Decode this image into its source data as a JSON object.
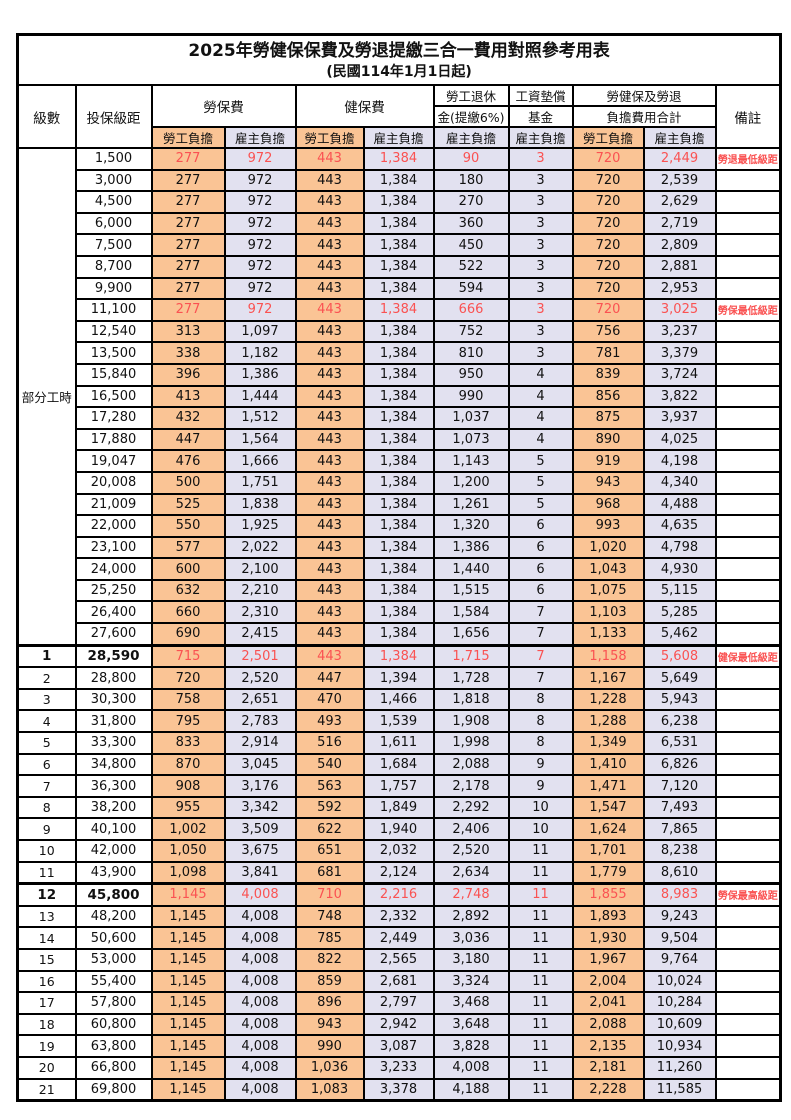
{
  "title": {
    "line1": "2025年勞健保保費及勞退提繳三合一費用對照參考用表",
    "line2": "(民國114年1月1日起)"
  },
  "header": {
    "level": "級數",
    "bracket": "投保級距",
    "labor_fee": "勞保費",
    "health_fee": "健保費",
    "pension_line1": "勞工退休",
    "pension_line2": "金(提繳6%)",
    "wage_fund_line1": "工資墊償",
    "wage_fund_line2": "基金",
    "total_line1": "勞健保及勞退",
    "total_line2": "負擔費用合計",
    "remark": "備註",
    "employee": "勞工負擔",
    "employer": "雇主負擔"
  },
  "part_time": {
    "label": "部分工時",
    "rowspan": 23
  },
  "colors": {
    "employee_bg": "#fac495",
    "employer_bg": "#e2e1f0",
    "highlight_text": "#fa5252",
    "border": "#000000"
  },
  "rows": [
    {
      "level": "",
      "bracket": "1,500",
      "values": [
        "277",
        "972",
        "443",
        "1,384",
        "90",
        "3",
        "720",
        "2,449"
      ],
      "remark": "勞退最低級距",
      "highlight": true,
      "thick_top": false,
      "key": false
    },
    {
      "level": "",
      "bracket": "3,000",
      "values": [
        "277",
        "972",
        "443",
        "1,384",
        "180",
        "3",
        "720",
        "2,539"
      ],
      "remark": "",
      "highlight": false,
      "thick_top": false,
      "key": false
    },
    {
      "level": "",
      "bracket": "4,500",
      "values": [
        "277",
        "972",
        "443",
        "1,384",
        "270",
        "3",
        "720",
        "2,629"
      ],
      "remark": "",
      "highlight": false,
      "thick_top": false,
      "key": false
    },
    {
      "level": "",
      "bracket": "6,000",
      "values": [
        "277",
        "972",
        "443",
        "1,384",
        "360",
        "3",
        "720",
        "2,719"
      ],
      "remark": "",
      "highlight": false,
      "thick_top": false,
      "key": false
    },
    {
      "level": "",
      "bracket": "7,500",
      "values": [
        "277",
        "972",
        "443",
        "1,384",
        "450",
        "3",
        "720",
        "2,809"
      ],
      "remark": "",
      "highlight": false,
      "thick_top": false,
      "key": false
    },
    {
      "level": "",
      "bracket": "8,700",
      "values": [
        "277",
        "972",
        "443",
        "1,384",
        "522",
        "3",
        "720",
        "2,881"
      ],
      "remark": "",
      "highlight": false,
      "thick_top": false,
      "key": false
    },
    {
      "level": "",
      "bracket": "9,900",
      "values": [
        "277",
        "972",
        "443",
        "1,384",
        "594",
        "3",
        "720",
        "2,953"
      ],
      "remark": "",
      "highlight": false,
      "thick_top": false,
      "key": false
    },
    {
      "level": "",
      "bracket": "11,100",
      "values": [
        "277",
        "972",
        "443",
        "1,384",
        "666",
        "3",
        "720",
        "3,025"
      ],
      "remark": "勞保最低級距",
      "highlight": true,
      "thick_top": false,
      "key": false
    },
    {
      "level": "",
      "bracket": "12,540",
      "values": [
        "313",
        "1,097",
        "443",
        "1,384",
        "752",
        "3",
        "756",
        "3,237"
      ],
      "remark": "",
      "highlight": false,
      "thick_top": false,
      "key": false
    },
    {
      "level": "",
      "bracket": "13,500",
      "values": [
        "338",
        "1,182",
        "443",
        "1,384",
        "810",
        "3",
        "781",
        "3,379"
      ],
      "remark": "",
      "highlight": false,
      "thick_top": false,
      "key": false
    },
    {
      "level": "",
      "bracket": "15,840",
      "values": [
        "396",
        "1,386",
        "443",
        "1,384",
        "950",
        "4",
        "839",
        "3,724"
      ],
      "remark": "",
      "highlight": false,
      "thick_top": false,
      "key": false
    },
    {
      "level": "",
      "bracket": "16,500",
      "values": [
        "413",
        "1,444",
        "443",
        "1,384",
        "990",
        "4",
        "856",
        "3,822"
      ],
      "remark": "",
      "highlight": false,
      "thick_top": false,
      "key": false
    },
    {
      "level": "",
      "bracket": "17,280",
      "values": [
        "432",
        "1,512",
        "443",
        "1,384",
        "1,037",
        "4",
        "875",
        "3,937"
      ],
      "remark": "",
      "highlight": false,
      "thick_top": false,
      "key": false
    },
    {
      "level": "",
      "bracket": "17,880",
      "values": [
        "447",
        "1,564",
        "443",
        "1,384",
        "1,073",
        "4",
        "890",
        "4,025"
      ],
      "remark": "",
      "highlight": false,
      "thick_top": false,
      "key": false
    },
    {
      "level": "",
      "bracket": "19,047",
      "values": [
        "476",
        "1,666",
        "443",
        "1,384",
        "1,143",
        "5",
        "919",
        "4,198"
      ],
      "remark": "",
      "highlight": false,
      "thick_top": false,
      "key": false
    },
    {
      "level": "",
      "bracket": "20,008",
      "values": [
        "500",
        "1,751",
        "443",
        "1,384",
        "1,200",
        "5",
        "943",
        "4,340"
      ],
      "remark": "",
      "highlight": false,
      "thick_top": false,
      "key": false
    },
    {
      "level": "",
      "bracket": "21,009",
      "values": [
        "525",
        "1,838",
        "443",
        "1,384",
        "1,261",
        "5",
        "968",
        "4,488"
      ],
      "remark": "",
      "highlight": false,
      "thick_top": false,
      "key": false
    },
    {
      "level": "",
      "bracket": "22,000",
      "values": [
        "550",
        "1,925",
        "443",
        "1,384",
        "1,320",
        "6",
        "993",
        "4,635"
      ],
      "remark": "",
      "highlight": false,
      "thick_top": false,
      "key": false
    },
    {
      "level": "",
      "bracket": "23,100",
      "values": [
        "577",
        "2,022",
        "443",
        "1,384",
        "1,386",
        "6",
        "1,020",
        "4,798"
      ],
      "remark": "",
      "highlight": false,
      "thick_top": false,
      "key": false
    },
    {
      "level": "",
      "bracket": "24,000",
      "values": [
        "600",
        "2,100",
        "443",
        "1,384",
        "1,440",
        "6",
        "1,043",
        "4,930"
      ],
      "remark": "",
      "highlight": false,
      "thick_top": false,
      "key": false
    },
    {
      "level": "",
      "bracket": "25,250",
      "values": [
        "632",
        "2,210",
        "443",
        "1,384",
        "1,515",
        "6",
        "1,075",
        "5,115"
      ],
      "remark": "",
      "highlight": false,
      "thick_top": false,
      "key": false
    },
    {
      "level": "",
      "bracket": "26,400",
      "values": [
        "660",
        "2,310",
        "443",
        "1,384",
        "1,584",
        "7",
        "1,103",
        "5,285"
      ],
      "remark": "",
      "highlight": false,
      "thick_top": false,
      "key": false
    },
    {
      "level": "",
      "bracket": "27,600",
      "values": [
        "690",
        "2,415",
        "443",
        "1,384",
        "1,656",
        "7",
        "1,133",
        "5,462"
      ],
      "remark": "",
      "highlight": false,
      "thick_top": false,
      "key": false
    },
    {
      "level": "1",
      "bracket": "28,590",
      "values": [
        "715",
        "2,501",
        "443",
        "1,384",
        "1,715",
        "7",
        "1,158",
        "5,608"
      ],
      "remark": "健保最低級距",
      "highlight": true,
      "thick_top": true,
      "key": true
    },
    {
      "level": "2",
      "bracket": "28,800",
      "values": [
        "720",
        "2,520",
        "447",
        "1,394",
        "1,728",
        "7",
        "1,167",
        "5,649"
      ],
      "remark": "",
      "highlight": false,
      "thick_top": false,
      "key": false
    },
    {
      "level": "3",
      "bracket": "30,300",
      "values": [
        "758",
        "2,651",
        "470",
        "1,466",
        "1,818",
        "8",
        "1,228",
        "5,943"
      ],
      "remark": "",
      "highlight": false,
      "thick_top": false,
      "key": false
    },
    {
      "level": "4",
      "bracket": "31,800",
      "values": [
        "795",
        "2,783",
        "493",
        "1,539",
        "1,908",
        "8",
        "1,288",
        "6,238"
      ],
      "remark": "",
      "highlight": false,
      "thick_top": false,
      "key": false
    },
    {
      "level": "5",
      "bracket": "33,300",
      "values": [
        "833",
        "2,914",
        "516",
        "1,611",
        "1,998",
        "8",
        "1,349",
        "6,531"
      ],
      "remark": "",
      "highlight": false,
      "thick_top": false,
      "key": false
    },
    {
      "level": "6",
      "bracket": "34,800",
      "values": [
        "870",
        "3,045",
        "540",
        "1,684",
        "2,088",
        "9",
        "1,410",
        "6,826"
      ],
      "remark": "",
      "highlight": false,
      "thick_top": false,
      "key": false
    },
    {
      "level": "7",
      "bracket": "36,300",
      "values": [
        "908",
        "3,176",
        "563",
        "1,757",
        "2,178",
        "9",
        "1,471",
        "7,120"
      ],
      "remark": "",
      "highlight": false,
      "thick_top": false,
      "key": false
    },
    {
      "level": "8",
      "bracket": "38,200",
      "values": [
        "955",
        "3,342",
        "592",
        "1,849",
        "2,292",
        "10",
        "1,547",
        "7,493"
      ],
      "remark": "",
      "highlight": false,
      "thick_top": false,
      "key": false
    },
    {
      "level": "9",
      "bracket": "40,100",
      "values": [
        "1,002",
        "3,509",
        "622",
        "1,940",
        "2,406",
        "10",
        "1,624",
        "7,865"
      ],
      "remark": "",
      "highlight": false,
      "thick_top": false,
      "key": false
    },
    {
      "level": "10",
      "bracket": "42,000",
      "values": [
        "1,050",
        "3,675",
        "651",
        "2,032",
        "2,520",
        "11",
        "1,701",
        "8,238"
      ],
      "remark": "",
      "highlight": false,
      "thick_top": false,
      "key": false
    },
    {
      "level": "11",
      "bracket": "43,900",
      "values": [
        "1,098",
        "3,841",
        "681",
        "2,124",
        "2,634",
        "11",
        "1,779",
        "8,610"
      ],
      "remark": "",
      "highlight": false,
      "thick_top": false,
      "key": false
    },
    {
      "level": "12",
      "bracket": "45,800",
      "values": [
        "1,145",
        "4,008",
        "710",
        "2,216",
        "2,748",
        "11",
        "1,855",
        "8,983"
      ],
      "remark": "勞保最高級距",
      "highlight": true,
      "thick_top": true,
      "key": true
    },
    {
      "level": "13",
      "bracket": "48,200",
      "values": [
        "1,145",
        "4,008",
        "748",
        "2,332",
        "2,892",
        "11",
        "1,893",
        "9,243"
      ],
      "remark": "",
      "highlight": false,
      "thick_top": false,
      "key": false
    },
    {
      "level": "14",
      "bracket": "50,600",
      "values": [
        "1,145",
        "4,008",
        "785",
        "2,449",
        "3,036",
        "11",
        "1,930",
        "9,504"
      ],
      "remark": "",
      "highlight": false,
      "thick_top": false,
      "key": false
    },
    {
      "level": "15",
      "bracket": "53,000",
      "values": [
        "1,145",
        "4,008",
        "822",
        "2,565",
        "3,180",
        "11",
        "1,967",
        "9,764"
      ],
      "remark": "",
      "highlight": false,
      "thick_top": false,
      "key": false
    },
    {
      "level": "16",
      "bracket": "55,400",
      "values": [
        "1,145",
        "4,008",
        "859",
        "2,681",
        "3,324",
        "11",
        "2,004",
        "10,024"
      ],
      "remark": "",
      "highlight": false,
      "thick_top": false,
      "key": false
    },
    {
      "level": "17",
      "bracket": "57,800",
      "values": [
        "1,145",
        "4,008",
        "896",
        "2,797",
        "3,468",
        "11",
        "2,041",
        "10,284"
      ],
      "remark": "",
      "highlight": false,
      "thick_top": false,
      "key": false
    },
    {
      "level": "18",
      "bracket": "60,800",
      "values": [
        "1,145",
        "4,008",
        "943",
        "2,942",
        "3,648",
        "11",
        "2,088",
        "10,609"
      ],
      "remark": "",
      "highlight": false,
      "thick_top": false,
      "key": false
    },
    {
      "level": "19",
      "bracket": "63,800",
      "values": [
        "1,145",
        "4,008",
        "990",
        "3,087",
        "3,828",
        "11",
        "2,135",
        "10,934"
      ],
      "remark": "",
      "highlight": false,
      "thick_top": false,
      "key": false
    },
    {
      "level": "20",
      "bracket": "66,800",
      "values": [
        "1,145",
        "4,008",
        "1,036",
        "3,233",
        "4,008",
        "11",
        "2,181",
        "11,260"
      ],
      "remark": "",
      "highlight": false,
      "thick_top": false,
      "key": false
    },
    {
      "level": "21",
      "bracket": "69,800",
      "values": [
        "1,145",
        "4,008",
        "1,083",
        "3,378",
        "4,188",
        "11",
        "2,228",
        "11,585"
      ],
      "remark": "",
      "highlight": false,
      "thick_top": false,
      "key": false
    }
  ]
}
